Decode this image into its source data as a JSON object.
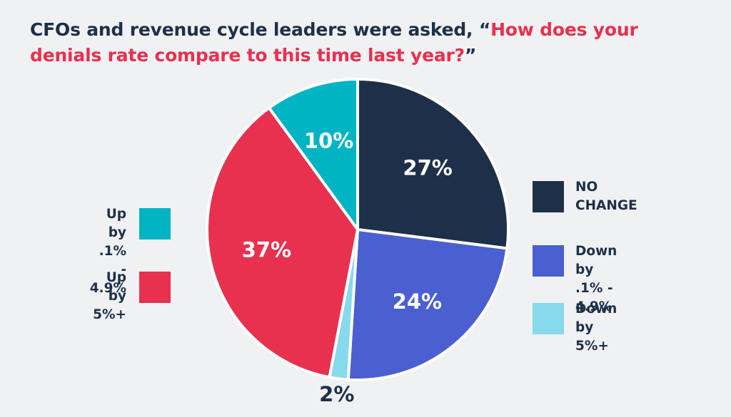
{
  "title": {
    "prefix": "CFOs and revenue cycle leaders were asked, “",
    "question": "How does your denials rate compare to this time last year?",
    "suffix": "”"
  },
  "chart_data": {
    "type": "pie",
    "title": "CFOs and revenue cycle leaders were asked, “How does your denials rate compare to this time last year?”",
    "start_angle_deg": 0,
    "direction": "clockwise",
    "slices": [
      {
        "key": "no_change",
        "label": "NO CHANGE",
        "value": 27,
        "display": "27%",
        "color": "#1e3049",
        "text_color": "#ffffff"
      },
      {
        "key": "down_small",
        "label": "Down by .1% - 4.9%",
        "value": 24,
        "display": "24%",
        "color": "#4a5fd0",
        "text_color": "#ffffff"
      },
      {
        "key": "down_large",
        "label": "Down by 5%+",
        "value": 2,
        "display": "2%",
        "color": "#87d9ec",
        "text_color": "#1e3049",
        "label_outside": true
      },
      {
        "key": "up_large",
        "label": "Up by 5%+",
        "value": 37,
        "display": "37%",
        "color": "#e8304f",
        "text_color": "#ffffff"
      },
      {
        "key": "up_small",
        "label": "Up by .1% - 4.9%",
        "value": 10,
        "display": "10%",
        "color": "#00b4c3",
        "text_color": "#ffffff"
      }
    ]
  },
  "legend": {
    "left": [
      {
        "key": "up_small",
        "text": "Up by\n.1% - 4.9%",
        "color": "#00b4c3"
      },
      {
        "key": "up_large",
        "text": "Up by\n5%+",
        "color": "#e8304f"
      }
    ],
    "right": [
      {
        "key": "no_change",
        "text": "NO\nCHANGE",
        "color": "#1e3049"
      },
      {
        "key": "down_small",
        "text": "Down by\n.1% - 4.9%",
        "color": "#4a5fd0"
      },
      {
        "key": "down_large",
        "text": "Down by\n5%+",
        "color": "#87d9ec"
      }
    ]
  }
}
